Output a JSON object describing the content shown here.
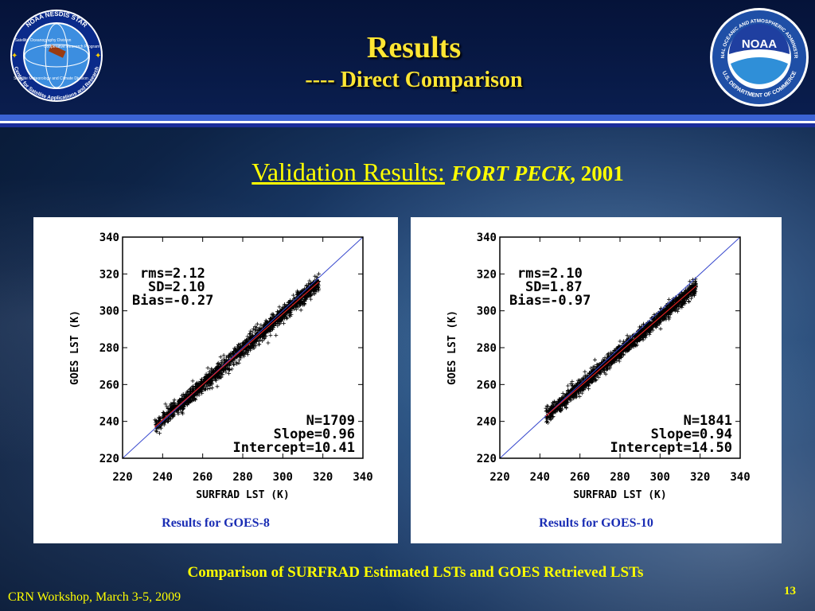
{
  "slide": {
    "title": "Results",
    "subtitle": "---- Direct Comparison",
    "heading_underlined": "Validation Results:",
    "heading_site": "FORT PECK",
    "heading_year": ", 2001",
    "footer_caption": "Comparison of SURFRAD Estimated LSTs and GOES Retrieved LSTs",
    "footer_left": "CRN Workshop, March 3-5, 2009",
    "page_number": "13"
  },
  "logos": {
    "left": {
      "icon": "noaa-nesdis-star-seal-icon",
      "ring_text_top": "NOAA NESDIS STAR",
      "ring_text_bottom": "Center for Satellite Applications and Research",
      "inner_labels": [
        "Satellite Oceanography Division",
        "Cooperative Research Program",
        "Satellite Meteorology and Climate Division"
      ]
    },
    "right": {
      "icon": "noaa-seal-icon",
      "center_text": "NOAA",
      "ring_text_top": "NATIONAL OCEANIC AND ATMOSPHERIC ADMINISTRATION",
      "ring_text_bottom": "U.S. DEPARTMENT OF COMMERCE"
    }
  },
  "colors": {
    "title_yellow": "#ffe633",
    "text_yellow": "#ffff00",
    "caption_blue": "#1a2db4",
    "stripe_blue": "#3b63d4",
    "one_to_one_line": "#3344cc",
    "fit_line": "#dd2222"
  },
  "chart_data": [
    {
      "type": "scatter",
      "caption": "Results for GOES-8",
      "xlabel": "SURFRAD LST (K)",
      "ylabel": "GOES LST (K)",
      "xlim": [
        220,
        340
      ],
      "ylim": [
        220,
        340
      ],
      "xticks": [
        "220",
        "240",
        "260",
        "280",
        "300",
        "320",
        "340"
      ],
      "yticks": [
        "220",
        "240",
        "260",
        "280",
        "300",
        "320",
        "340"
      ],
      "stats_top": [
        "rms=2.12",
        "SD=2.10",
        "Bias=-0.27"
      ],
      "stats_bottom": [
        "N=1709",
        "Slope=0.96",
        "Intercept=10.41"
      ],
      "n": 1709,
      "rms": 2.12,
      "sd": 2.1,
      "bias": -0.27,
      "slope": 0.96,
      "intercept": 10.41,
      "x_range_of_points": [
        236,
        318
      ],
      "grid": false,
      "lines": [
        "1:1 line",
        "regression fit"
      ]
    },
    {
      "type": "scatter",
      "caption": "Results for GOES-10",
      "xlabel": "SURFRAD LST (K)",
      "ylabel": "GOES LST (K)",
      "xlim": [
        220,
        340
      ],
      "ylim": [
        220,
        340
      ],
      "xticks": [
        "220",
        "240",
        "260",
        "280",
        "300",
        "320",
        "340"
      ],
      "yticks": [
        "220",
        "240",
        "260",
        "280",
        "300",
        "320",
        "340"
      ],
      "stats_top": [
        "rms=2.10",
        "SD=1.87",
        "Bias=-0.97"
      ],
      "stats_bottom": [
        "N=1841",
        "Slope=0.94",
        "Intercept=14.50"
      ],
      "n": 1841,
      "rms": 2.1,
      "sd": 1.87,
      "bias": -0.97,
      "slope": 0.94,
      "intercept": 14.5,
      "x_range_of_points": [
        243,
        318
      ],
      "grid": false,
      "lines": [
        "1:1 line",
        "regression fit"
      ]
    }
  ]
}
